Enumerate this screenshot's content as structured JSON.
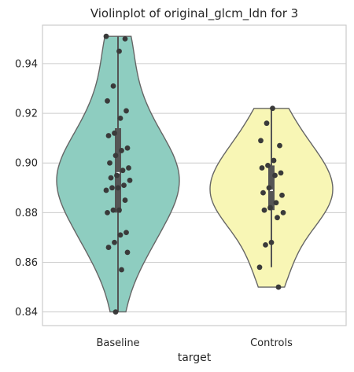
{
  "chart_data": {
    "type": "violin",
    "title": "Violinplot of original_glcm_ldn for 3",
    "xlabel": "target",
    "ylabel": "",
    "ylim": [
      0.8345,
      0.9555
    ],
    "yticks": [
      "0.84",
      "0.86",
      "0.88",
      "0.90",
      "0.92",
      "0.94"
    ],
    "grid": true,
    "categories": [
      "Baseline",
      "Controls"
    ],
    "colors": [
      "#8ecdc0",
      "#f8f6b5"
    ],
    "series": [
      {
        "category": "Baseline",
        "q1": 0.88,
        "median": 0.896,
        "q3": 0.914,
        "whisker_low": 0.84,
        "whisker_high": 0.951,
        "points": [
          0.951,
          0.95,
          0.945,
          0.931,
          0.925,
          0.921,
          0.918,
          0.912,
          0.911,
          0.906,
          0.905,
          0.903,
          0.9,
          0.898,
          0.897,
          0.895,
          0.894,
          0.893,
          0.891,
          0.89,
          0.89,
          0.889,
          0.885,
          0.881,
          0.881,
          0.88,
          0.872,
          0.871,
          0.868,
          0.866,
          0.864,
          0.857,
          0.84
        ]
      },
      {
        "category": "Controls",
        "q1": 0.881,
        "median": 0.889,
        "q3": 0.899,
        "whisker_low": 0.858,
        "whisker_high": 0.922,
        "points": [
          0.922,
          0.916,
          0.909,
          0.907,
          0.901,
          0.899,
          0.898,
          0.896,
          0.895,
          0.89,
          0.888,
          0.887,
          0.884,
          0.882,
          0.881,
          0.88,
          0.878,
          0.868,
          0.867,
          0.858,
          0.85
        ]
      }
    ]
  }
}
